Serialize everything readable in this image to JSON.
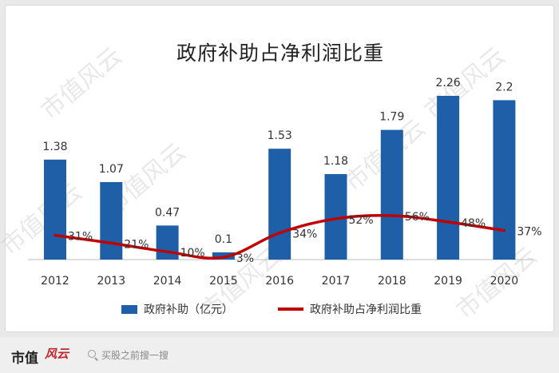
{
  "chart_data": {
    "type": "bar",
    "title": "政府补助占净利润比重",
    "categories": [
      "2012",
      "2013",
      "2014",
      "2015",
      "2016",
      "2017",
      "2018",
      "2019",
      "2020"
    ],
    "series": [
      {
        "name": "政府补助（亿元）",
        "type": "bar",
        "values": [
          1.38,
          1.07,
          0.47,
          0.1,
          1.53,
          1.18,
          1.79,
          2.26,
          2.2
        ],
        "labels": [
          "1.38",
          "1.07",
          "0.47",
          "0.1",
          "1.53",
          "1.18",
          "1.79",
          "2.26",
          "2.2"
        ],
        "color": "#1f5fa8"
      },
      {
        "name": "政府补助占净利润比重",
        "type": "line",
        "values": [
          31,
          21,
          10,
          3,
          34,
          52,
          56,
          48,
          37
        ],
        "labels": [
          "31%",
          "21%",
          "10%",
          "3%",
          "34%",
          "52%",
          "56%",
          "48%",
          "37%"
        ],
        "color": "#c00000"
      }
    ],
    "legend_position": "bottom",
    "grid": false
  },
  "watermark_text": "市值风云",
  "footer": {
    "brand": "市值",
    "brand_logo": "风云",
    "search_text": "买股之前搜一搜"
  }
}
